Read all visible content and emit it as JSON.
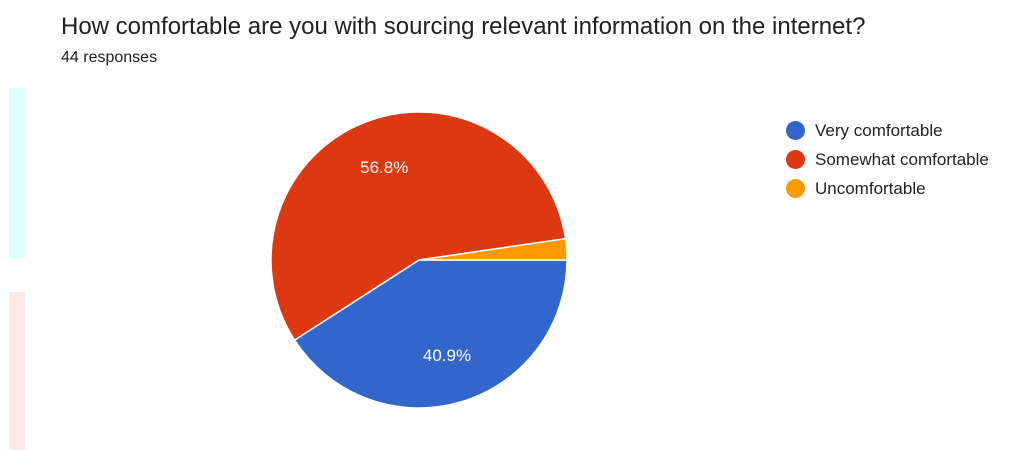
{
  "question": {
    "title": "How comfortable are you with sourcing relevant information on the internet?",
    "responses": "44 responses"
  },
  "chart_data": {
    "type": "pie",
    "title": "How comfortable are you with sourcing relevant information on the internet?",
    "subtitle": "44 responses",
    "categories": [
      "Very comfortable",
      "Somewhat comfortable",
      "Uncomfortable"
    ],
    "values": [
      40.9,
      56.8,
      2.3
    ],
    "value_labels": [
      "40.9%",
      "56.8%",
      ""
    ],
    "colors": [
      "#3366cc",
      "#dc3912",
      "#ff9900"
    ],
    "legend_position": "right"
  },
  "legend": {
    "items": [
      {
        "label": "Very comfortable",
        "color": "#3366cc"
      },
      {
        "label": "Somewhat comfortable",
        "color": "#dc3912"
      },
      {
        "label": "Uncomfortable",
        "color": "#ff9900"
      }
    ]
  },
  "decorations": {
    "strip_colors": [
      "#dafdfd",
      "#fde7e7"
    ]
  }
}
